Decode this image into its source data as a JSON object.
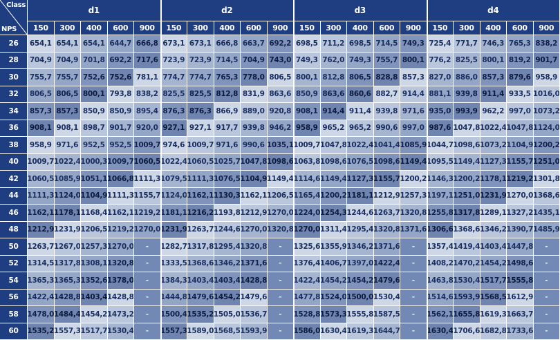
{
  "header": {
    "class_label": "Class",
    "nps_label": "NPS",
    "groups": [
      "d1",
      "d2",
      "d3",
      "d4"
    ],
    "classes": [
      "150",
      "300",
      "400",
      "600",
      "900"
    ]
  },
  "rows": [
    {
      "nps": "26",
      "d1": [
        "654,1",
        "654,1",
        "654,1",
        "644,7",
        "666,8"
      ],
      "d2": [
        "673,1",
        "673,1",
        "666,8",
        "663,7",
        "692,2"
      ],
      "d3": [
        "698,5",
        "711,2",
        "698,5",
        "714,5",
        "749,3"
      ],
      "d4": [
        "725,4",
        "771,7",
        "746,3",
        "765,3",
        "838,2"
      ]
    },
    {
      "nps": "28",
      "d1": [
        "704,9",
        "704,9",
        "701,8",
        "692,2",
        "717,6"
      ],
      "d2": [
        "723,9",
        "723,9",
        "714,5",
        "704,9",
        "743,0"
      ],
      "d3": [
        "749,3",
        "762,0",
        "749,3",
        "755,7",
        "800,1"
      ],
      "d4": [
        "776,2",
        "825,5",
        "800,1",
        "819,2",
        "901,7"
      ]
    },
    {
      "nps": "30",
      "d1": [
        "755,7",
        "755,7",
        "752,6",
        "752,6",
        "781,1"
      ],
      "d2": [
        "774,7",
        "774,7",
        "765,3",
        "778,0",
        "806,5"
      ],
      "d3": [
        "800,1",
        "812,8",
        "806,5",
        "828,8",
        "857,3"
      ],
      "d4": [
        "827,0",
        "886,0",
        "857,3",
        "879,6",
        "958,9"
      ]
    },
    {
      "nps": "32",
      "d1": [
        "806,5",
        "806,5",
        "800,1",
        "793,8",
        "838,2"
      ],
      "d2": [
        "825,5",
        "825,5",
        "812,8",
        "831,9",
        "863,6"
      ],
      "d3": [
        "850,9",
        "863,6",
        "860,6",
        "882,7",
        "914,4"
      ],
      "d4": [
        "881,1",
        "939,8",
        "911,4",
        "933,5",
        "1016,0"
      ]
    },
    {
      "nps": "34",
      "d1": [
        "857,3",
        "857,3",
        "850,9",
        "850,9",
        "895,4"
      ],
      "d2": [
        "876,3",
        "876,3",
        "866,9",
        "889,0",
        "920,8"
      ],
      "d3": [
        "908,1",
        "914,4",
        "911,4",
        "939,8",
        "971,6"
      ],
      "d4": [
        "935,0",
        "993,9",
        "962,2",
        "997,0",
        "1073,2"
      ]
    },
    {
      "nps": "36",
      "d1": [
        "908,1",
        "908,1",
        "898,7",
        "901,7",
        "920,0"
      ],
      "d2": [
        "927,1",
        "927,1",
        "917,7",
        "939,8",
        "946,2"
      ],
      "d3": [
        "958,9",
        "965,2",
        "965,2",
        "990,6",
        "997,0"
      ],
      "d4": [
        "987,6",
        "1047,8",
        "1022,4",
        "1047,8",
        "1124,0"
      ]
    },
    {
      "nps": "38",
      "d1": [
        "958,9",
        "971,6",
        "952,5",
        "952,5",
        "1009,7"
      ],
      "d2": [
        "974,6",
        "1009,7",
        "971,6",
        "990,6",
        "1035,1"
      ],
      "d3": [
        "1009,7",
        "1047,8",
        "1022,4",
        "1041,4",
        "1085,9"
      ],
      "d4": [
        "1044,7",
        "1098,6",
        "1073,2",
        "1104,9",
        "1200,2"
      ]
    },
    {
      "nps": "40",
      "d1": [
        "1009,7",
        "1022,4",
        "1000,3",
        "1009,7",
        "1060,5"
      ],
      "d2": [
        "1022,4",
        "1060,5",
        "1025,7",
        "1047,8",
        "1098,6"
      ],
      "d3": [
        "1063,8",
        "1098,6",
        "1076,5",
        "1098,6",
        "1149,4"
      ],
      "d4": [
        "1095,5",
        "1149,4",
        "1127,3",
        "1155,7",
        "1251,0"
      ]
    },
    {
      "nps": "42",
      "d1": [
        "1060,5",
        "1085,9",
        "1051,1",
        "1066,8",
        "1111,3"
      ],
      "d2": [
        "1079,5",
        "1111,3",
        "1076,5",
        "1104,9",
        "1149,4"
      ],
      "d3": [
        "1114,6",
        "1149,4",
        "1127,3",
        "1155,7",
        "1200,2"
      ],
      "d4": [
        "1146,3",
        "1200,2",
        "1178,1",
        "1219,2",
        "1301,8"
      ]
    },
    {
      "nps": "44",
      "d1": [
        "1111,3",
        "1124,0",
        "1104,9",
        "1111,3",
        "1155,7"
      ],
      "d2": [
        "1124,0",
        "1162,1",
        "1130,3",
        "1162,1",
        "1206,5"
      ],
      "d3": [
        "1165,4",
        "1200,2",
        "1181,1",
        "1212,9",
        "1257,3"
      ],
      "d4": [
        "1197,1",
        "1251,0",
        "1231,9",
        "1270,0",
        "1368,6"
      ]
    },
    {
      "nps": "46",
      "d1": [
        "1162,1",
        "1178,1",
        "1168,4",
        "1162,1",
        "1219,2"
      ],
      "d2": [
        "1181,1",
        "1216,2",
        "1193,8",
        "1212,9",
        "1270,0"
      ],
      "d3": [
        "1224,0",
        "1254,3",
        "1244,6",
        "1263,7",
        "1320,8"
      ],
      "d4": [
        "1255,8",
        "1317,8",
        "1289,1",
        "1327,2",
        "1435,1"
      ]
    },
    {
      "nps": "48",
      "d1": [
        "1212,9",
        "1231,9",
        "1206,5",
        "1219,2",
        "1270,0"
      ],
      "d2": [
        "1231,9",
        "1263,7",
        "1244,6",
        "1270,0",
        "1320,8"
      ],
      "d3": [
        "1270,0",
        "1311,4",
        "1295,4",
        "1320,8",
        "1371,6"
      ],
      "d4": [
        "1306,6",
        "1368,6",
        "1346,2",
        "1390,7",
        "1485,9"
      ]
    },
    {
      "nps": "50",
      "d1": [
        "1263,7",
        "1267,0",
        "1257,3",
        "1270,0",
        "-"
      ],
      "d2": [
        "1282,7",
        "1317,8",
        "1295,4",
        "1320,8",
        "-"
      ],
      "d3": [
        "1325,6",
        "1355,9",
        "1346,2",
        "1371,6",
        "-"
      ],
      "d4": [
        "1357,4",
        "1419,4",
        "1403,4",
        "1447,8",
        "-"
      ]
    },
    {
      "nps": "52",
      "d1": [
        "1314,5",
        "1317,8",
        "1308,1",
        "1320,8",
        "-"
      ],
      "d2": [
        "1333,5",
        "1368,6",
        "1346,2",
        "1371,6",
        "-"
      ],
      "d3": [
        "1376,4",
        "1406,7",
        "1397,0",
        "1422,4",
        "-"
      ],
      "d4": [
        "1408,2",
        "1470,2",
        "1454,2",
        "1498,6",
        "-"
      ]
    },
    {
      "nps": "54",
      "d1": [
        "1365,3",
        "1365,3",
        "1352,6",
        "1378,0",
        "-"
      ],
      "d2": [
        "1384,3",
        "1403,4",
        "1403,4",
        "1428,8",
        "-"
      ],
      "d3": [
        "1422,4",
        "1454,2",
        "1454,2",
        "1479,6",
        "-"
      ],
      "d4": [
        "1463,8",
        "1530,4",
        "1517,7",
        "1555,8",
        "-"
      ]
    },
    {
      "nps": "56",
      "d1": [
        "1422,4",
        "1428,8",
        "1403,4",
        "1428,8",
        "-"
      ],
      "d2": [
        "1444,8",
        "1479,6",
        "1454,2",
        "1479,6",
        "-"
      ],
      "d3": [
        "1477,8",
        "1524,0",
        "1500,0",
        "1530,4",
        "-"
      ],
      "d4": [
        "1514,6",
        "1593,9",
        "1568,5",
        "1612,9",
        "-"
      ]
    },
    {
      "nps": "58",
      "d1": [
        "1478,0",
        "1484,4",
        "1454,2",
        "1473,2",
        "-"
      ],
      "d2": [
        "1500,4",
        "1535,2",
        "1505,0",
        "1536,7",
        "-"
      ],
      "d3": [
        "1528,8",
        "1573,3",
        "1555,8",
        "1587,5",
        "-"
      ],
      "d4": [
        "1562,1",
        "1655,8",
        "1619,3",
        "1663,7",
        "-"
      ]
    },
    {
      "nps": "60",
      "d1": [
        "1535,2",
        "1557,3",
        "1517,7",
        "1530,4",
        "-"
      ],
      "d2": [
        "1557,3",
        "1589,0",
        "1568,5",
        "1593,9",
        "-"
      ],
      "d3": [
        "1586,0",
        "1630,4",
        "1619,3",
        "1644,7",
        "-"
      ],
      "d4": [
        "1630,4",
        "1706,6",
        "1682,8",
        "1733,6",
        "-"
      ]
    }
  ],
  "colors": {
    "header_bg": "#1f3e82",
    "header_text": "#ffffff",
    "value_text": "#1b2f63"
  }
}
